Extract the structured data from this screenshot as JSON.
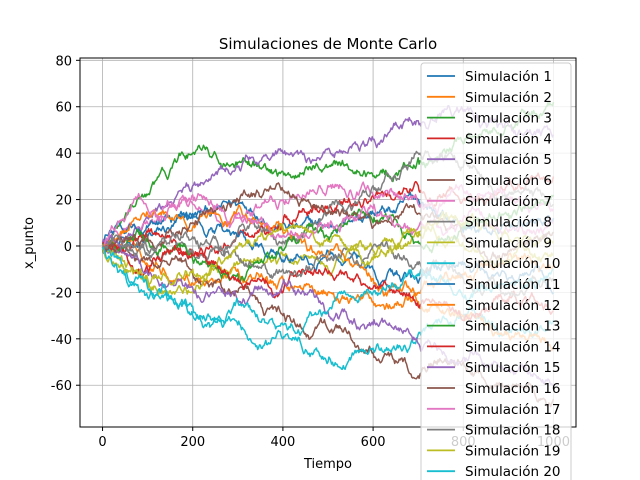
{
  "chart_data": {
    "type": "line",
    "title": "Simulaciones de Monte Carlo",
    "xlabel": "Tiempo",
    "ylabel": "x_punto",
    "xlim": [
      -50,
      1050
    ],
    "ylim": [
      -78,
      81
    ],
    "xticks": [
      0,
      200,
      400,
      600,
      800,
      1000
    ],
    "yticks": [
      -60,
      -40,
      -20,
      0,
      20,
      40,
      60,
      80
    ],
    "grid": true,
    "legend_position": "upper-right",
    "series": [
      {
        "name": "Simulación 1",
        "color": "#1f77b4",
        "values": [
          [
            0,
            0
          ],
          [
            100,
            4
          ],
          [
            200,
            12
          ],
          [
            300,
            18
          ],
          [
            400,
            10
          ],
          [
            500,
            8
          ],
          [
            600,
            14
          ],
          [
            700,
            20
          ],
          [
            800,
            6
          ],
          [
            900,
            10
          ],
          [
            1000,
            12
          ]
        ]
      },
      {
        "name": "Simulación 2",
        "color": "#ff7f0e",
        "values": [
          [
            0,
            0
          ],
          [
            100,
            -8
          ],
          [
            200,
            -16
          ],
          [
            300,
            -10
          ],
          [
            400,
            -14
          ],
          [
            500,
            -20
          ],
          [
            600,
            -24
          ],
          [
            700,
            -20
          ],
          [
            800,
            -12
          ],
          [
            900,
            -4
          ],
          [
            1000,
            -8
          ]
        ]
      },
      {
        "name": "Simulación 3",
        "color": "#2ca02c",
        "values": [
          [
            0,
            0
          ],
          [
            100,
            22
          ],
          [
            200,
            40
          ],
          [
            300,
            36
          ],
          [
            400,
            32
          ],
          [
            500,
            34
          ],
          [
            600,
            30
          ],
          [
            700,
            38
          ],
          [
            800,
            44
          ],
          [
            900,
            52
          ],
          [
            1000,
            62
          ]
        ]
      },
      {
        "name": "Simulación 4",
        "color": "#d62728",
        "values": [
          [
            0,
            0
          ],
          [
            100,
            6
          ],
          [
            200,
            -2
          ],
          [
            300,
            4
          ],
          [
            400,
            10
          ],
          [
            500,
            16
          ],
          [
            600,
            22
          ],
          [
            700,
            26
          ],
          [
            800,
            20
          ],
          [
            900,
            28
          ],
          [
            1000,
            30
          ]
        ]
      },
      {
        "name": "Simulación 5",
        "color": "#9467bd",
        "values": [
          [
            0,
            0
          ],
          [
            100,
            12
          ],
          [
            200,
            26
          ],
          [
            300,
            34
          ],
          [
            400,
            40
          ],
          [
            500,
            42
          ],
          [
            600,
            46
          ],
          [
            700,
            54
          ],
          [
            800,
            58
          ],
          [
            900,
            52
          ],
          [
            1000,
            48
          ]
        ]
      },
      {
        "name": "Simulación 6",
        "color": "#8c564b",
        "values": [
          [
            0,
            0
          ],
          [
            100,
            -6
          ],
          [
            200,
            -12
          ],
          [
            300,
            -20
          ],
          [
            400,
            -30
          ],
          [
            500,
            -36
          ],
          [
            600,
            -46
          ],
          [
            700,
            -56
          ],
          [
            800,
            -50
          ],
          [
            900,
            -60
          ],
          [
            1000,
            -66
          ]
        ]
      },
      {
        "name": "Simulación 7",
        "color": "#e377c2",
        "values": [
          [
            0,
            0
          ],
          [
            100,
            10
          ],
          [
            200,
            18
          ],
          [
            300,
            14
          ],
          [
            400,
            20
          ],
          [
            500,
            26
          ],
          [
            600,
            22
          ],
          [
            700,
            18
          ],
          [
            800,
            24
          ],
          [
            900,
            20
          ],
          [
            1000,
            16
          ]
        ]
      },
      {
        "name": "Simulación 8",
        "color": "#7f7f7f",
        "values": [
          [
            0,
            0
          ],
          [
            100,
            -4
          ],
          [
            200,
            -2
          ],
          [
            300,
            6
          ],
          [
            400,
            2
          ],
          [
            500,
            14
          ],
          [
            600,
            26
          ],
          [
            700,
            40
          ],
          [
            800,
            34
          ],
          [
            900,
            22
          ],
          [
            1000,
            18
          ]
        ]
      },
      {
        "name": "Simulación 9",
        "color": "#bcbd22",
        "values": [
          [
            0,
            0
          ],
          [
            100,
            -14
          ],
          [
            200,
            -20
          ],
          [
            300,
            -8
          ],
          [
            400,
            -4
          ],
          [
            500,
            -10
          ],
          [
            600,
            -2
          ],
          [
            700,
            6
          ],
          [
            800,
            0
          ],
          [
            900,
            -6
          ],
          [
            1000,
            2
          ]
        ]
      },
      {
        "name": "Simulación 10",
        "color": "#17becf",
        "values": [
          [
            0,
            0
          ],
          [
            100,
            -22
          ],
          [
            200,
            -26
          ],
          [
            300,
            -34
          ],
          [
            400,
            -40
          ],
          [
            500,
            -50
          ],
          [
            600,
            -44
          ],
          [
            700,
            -38
          ],
          [
            800,
            -30
          ],
          [
            900,
            -36
          ],
          [
            1000,
            -32
          ]
        ]
      },
      {
        "name": "Simulación 11",
        "color": "#1f77b4",
        "values": [
          [
            0,
            0
          ],
          [
            100,
            8
          ],
          [
            200,
            14
          ],
          [
            300,
            4
          ],
          [
            400,
            -6
          ],
          [
            500,
            -2
          ],
          [
            600,
            -10
          ],
          [
            700,
            -16
          ],
          [
            800,
            -8
          ],
          [
            900,
            -14
          ],
          [
            1000,
            -20
          ]
        ]
      },
      {
        "name": "Simulación 12",
        "color": "#ff7f0e",
        "values": [
          [
            0,
            0
          ],
          [
            100,
            14
          ],
          [
            200,
            8
          ],
          [
            300,
            16
          ],
          [
            400,
            6
          ],
          [
            500,
            -4
          ],
          [
            600,
            -14
          ],
          [
            700,
            -24
          ],
          [
            800,
            -30
          ],
          [
            900,
            -38
          ],
          [
            1000,
            -44
          ]
        ]
      },
      {
        "name": "Simulación 13",
        "color": "#2ca02c",
        "values": [
          [
            0,
            0
          ],
          [
            100,
            2
          ],
          [
            200,
            -6
          ],
          [
            300,
            -12
          ],
          [
            400,
            -2
          ],
          [
            500,
            4
          ],
          [
            600,
            10
          ],
          [
            700,
            2
          ],
          [
            800,
            8
          ],
          [
            900,
            14
          ],
          [
            1000,
            22
          ]
        ]
      },
      {
        "name": "Simulación 14",
        "color": "#d62728",
        "values": [
          [
            0,
            0
          ],
          [
            100,
            -10
          ],
          [
            200,
            -4
          ],
          [
            300,
            -14
          ],
          [
            400,
            -20
          ],
          [
            500,
            -12
          ],
          [
            600,
            -18
          ],
          [
            700,
            -26
          ],
          [
            800,
            -32
          ],
          [
            900,
            -24
          ],
          [
            1000,
            -28
          ]
        ]
      },
      {
        "name": "Simulación 15",
        "color": "#9467bd",
        "values": [
          [
            0,
            0
          ],
          [
            100,
            -12
          ],
          [
            200,
            -18
          ],
          [
            300,
            -24
          ],
          [
            400,
            -16
          ],
          [
            500,
            -28
          ],
          [
            600,
            -34
          ],
          [
            700,
            -42
          ],
          [
            800,
            -48
          ],
          [
            900,
            -54
          ],
          [
            1000,
            -60
          ]
        ]
      },
      {
        "name": "Simulación 16",
        "color": "#8c564b",
        "values": [
          [
            0,
            0
          ],
          [
            100,
            4
          ],
          [
            200,
            10
          ],
          [
            300,
            20
          ],
          [
            400,
            24
          ],
          [
            500,
            14
          ],
          [
            600,
            8
          ],
          [
            700,
            14
          ],
          [
            800,
            4
          ],
          [
            900,
            -2
          ],
          [
            1000,
            6
          ]
        ]
      },
      {
        "name": "Simulación 17",
        "color": "#e377c2",
        "values": [
          [
            0,
            0
          ],
          [
            100,
            16
          ],
          [
            200,
            22
          ],
          [
            300,
            12
          ],
          [
            400,
            4
          ],
          [
            500,
            10
          ],
          [
            600,
            16
          ],
          [
            700,
            8
          ],
          [
            800,
            12
          ],
          [
            900,
            6
          ],
          [
            1000,
            10
          ]
        ]
      },
      {
        "name": "Simulación 18",
        "color": "#7f7f7f",
        "values": [
          [
            0,
            0
          ],
          [
            100,
            -2
          ],
          [
            200,
            4
          ],
          [
            300,
            -4
          ],
          [
            400,
            -10
          ],
          [
            500,
            -6
          ],
          [
            600,
            0
          ],
          [
            700,
            -8
          ],
          [
            800,
            -14
          ],
          [
            900,
            -20
          ],
          [
            1000,
            -14
          ]
        ]
      },
      {
        "name": "Simulación 19",
        "color": "#bcbd22",
        "values": [
          [
            0,
            0
          ],
          [
            100,
            -16
          ],
          [
            200,
            -10
          ],
          [
            300,
            0
          ],
          [
            400,
            8
          ],
          [
            500,
            2
          ],
          [
            600,
            -6
          ],
          [
            700,
            4
          ],
          [
            800,
            10
          ],
          [
            900,
            4
          ],
          [
            1000,
            -4
          ]
        ]
      },
      {
        "name": "Simulación 20",
        "color": "#17becf",
        "values": [
          [
            0,
            0
          ],
          [
            100,
            -18
          ],
          [
            200,
            -30
          ],
          [
            300,
            -24
          ],
          [
            400,
            -34
          ],
          [
            500,
            -28
          ],
          [
            600,
            -20
          ],
          [
            700,
            -12
          ],
          [
            800,
            -22
          ],
          [
            900,
            -16
          ],
          [
            1000,
            -10
          ]
        ]
      }
    ]
  }
}
